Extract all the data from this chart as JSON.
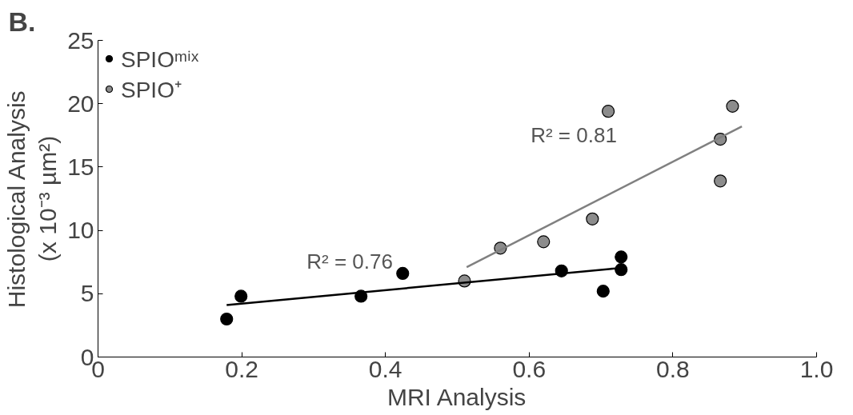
{
  "chart_data": {
    "type": "scatter",
    "title": "B.",
    "xlabel": "MRI Analysis",
    "ylabel": "Histological Analysis\n(x 10⁻³ µm²)",
    "xlim": [
      0,
      1.0
    ],
    "ylim": [
      0,
      25
    ],
    "xticks": [
      0,
      0.2,
      0.4,
      0.6,
      0.8,
      {
        "value": 1.0,
        "label": "1.0"
      }
    ],
    "yticks": [
      0,
      5,
      10,
      15,
      20,
      25
    ],
    "grid": false,
    "legend": "top left",
    "series": [
      {
        "name": "SPIOᵐⁱˣ",
        "marker": "circle",
        "color": "#000000",
        "x": [
          0.179,
          0.199,
          0.366,
          0.424,
          0.645,
          0.703,
          0.728,
          0.728
        ],
        "values": [
          3.0,
          4.8,
          4.8,
          6.6,
          6.8,
          5.2,
          7.9,
          6.9
        ]
      },
      {
        "name": "SPIO⁺",
        "marker": "circle",
        "color": "#8c8c8c",
        "x": [
          0.51,
          0.56,
          0.62,
          0.688,
          0.71,
          0.866,
          0.866,
          0.883
        ],
        "values": [
          6.0,
          8.6,
          9.1,
          10.9,
          19.4,
          17.2,
          13.9,
          19.8
        ]
      },
      {
        "type": "line",
        "color": "#000000",
        "x": [
          0.179,
          0.721
        ],
        "values": [
          4.1,
          7.0
        ]
      },
      {
        "type": "line",
        "color": "#808080",
        "x": [
          0.513,
          0.896
        ],
        "values": [
          7.1,
          18.2
        ]
      }
    ],
    "annotations": [
      "R² = 0.76",
      "R² = 0.81"
    ]
  }
}
